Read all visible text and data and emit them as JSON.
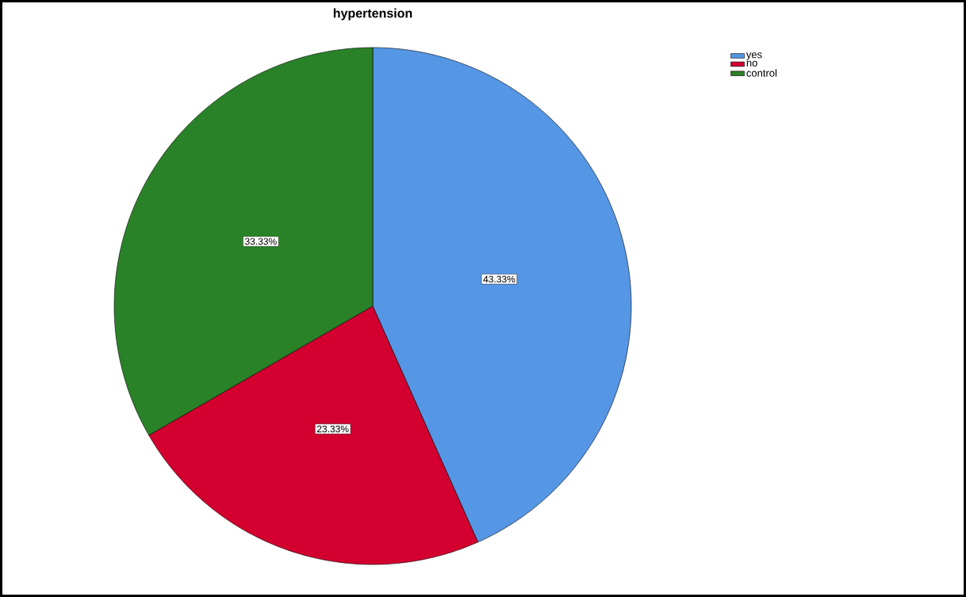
{
  "chart_data": {
    "type": "pie",
    "title": "hypertension",
    "categories": [
      "yes",
      "no",
      "control"
    ],
    "values": [
      43.33,
      23.33,
      33.33
    ],
    "colors": [
      "#5596e5",
      "#d3002f",
      "#2a8228"
    ],
    "value_labels": [
      "43.33%",
      "23.33%",
      "33.33%"
    ],
    "legend": "top right"
  }
}
